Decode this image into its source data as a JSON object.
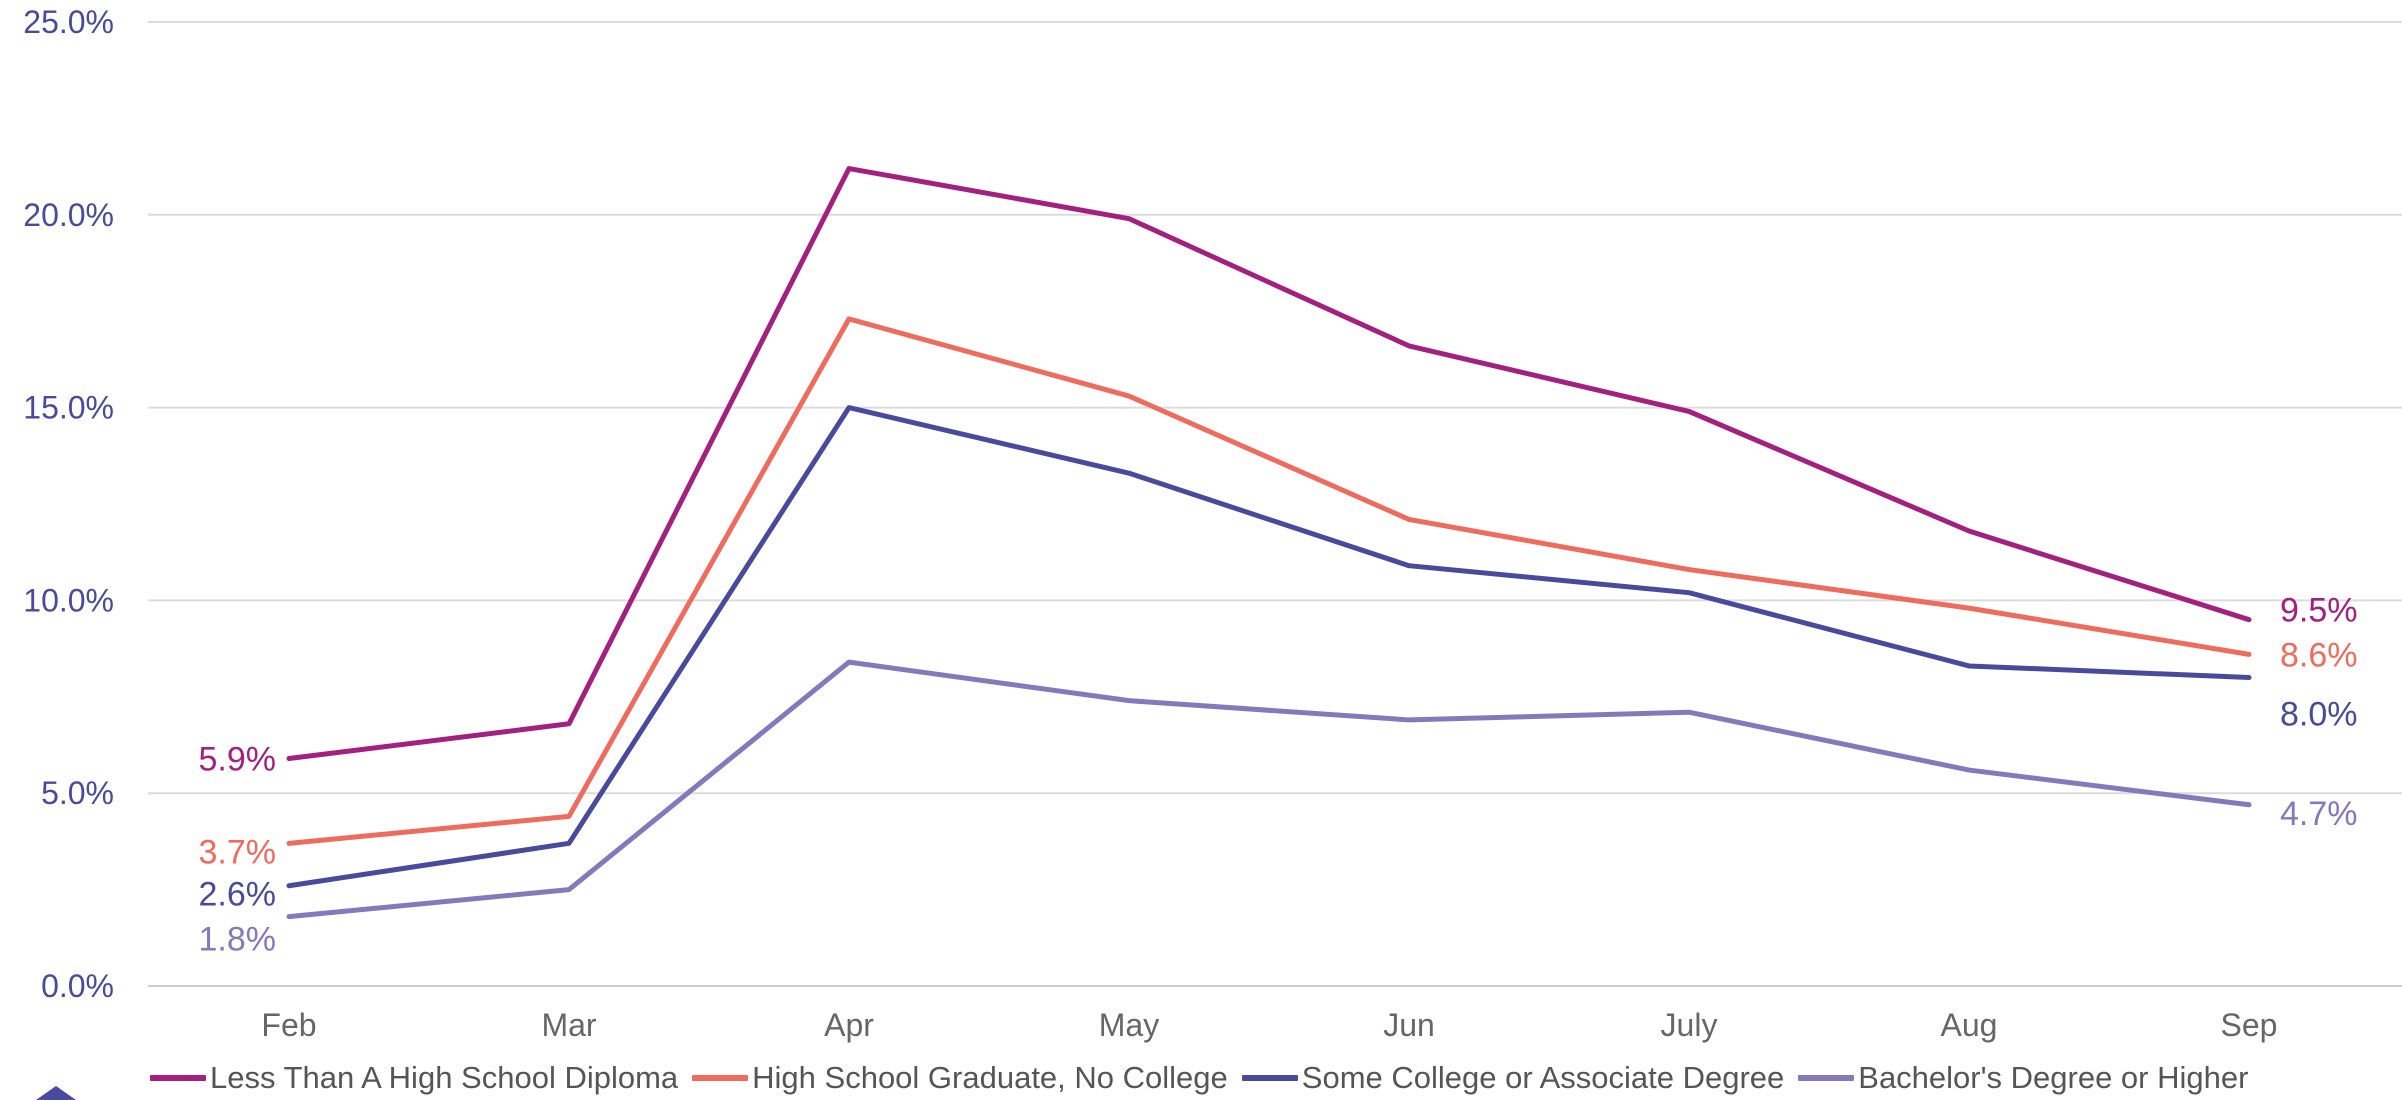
{
  "chart_data": {
    "type": "line",
    "title": "",
    "xlabel": "",
    "ylabel": "",
    "categories": [
      "Feb",
      "Mar",
      "Apr",
      "May",
      "Jun",
      "July",
      "Aug",
      "Sep"
    ],
    "ylim": [
      0,
      25
    ],
    "yticks": [
      "0.0%",
      "5.0%",
      "10.0%",
      "15.0%",
      "20.0%",
      "25.0%"
    ],
    "grid": true,
    "legend_position": "bottom",
    "series": [
      {
        "name": "Less Than A High School Diploma",
        "color": "#a3207e",
        "values": [
          5.9,
          6.8,
          21.2,
          19.9,
          16.6,
          14.9,
          11.8,
          9.5
        ],
        "start_label": "5.9%",
        "end_label": "9.5%"
      },
      {
        "name": "High School Graduate, No College",
        "color": "#ef6b5e",
        "values": [
          3.7,
          4.4,
          17.3,
          15.3,
          12.1,
          10.8,
          9.8,
          8.6
        ],
        "start_label": "3.7%",
        "end_label": "8.6%"
      },
      {
        "name": "Some College or Associate Degree",
        "color": "#4a4a9c",
        "values": [
          2.6,
          3.7,
          15.0,
          13.3,
          10.9,
          10.2,
          8.3,
          8.0
        ],
        "start_label": "2.6%",
        "end_label": "8.0%"
      },
      {
        "name": "Bachelor's Degree or Higher",
        "color": "#8479bb",
        "values": [
          1.8,
          2.5,
          8.4,
          7.4,
          6.9,
          7.1,
          5.6,
          4.7
        ],
        "start_label": "1.8%",
        "end_label": "4.7%"
      }
    ]
  }
}
